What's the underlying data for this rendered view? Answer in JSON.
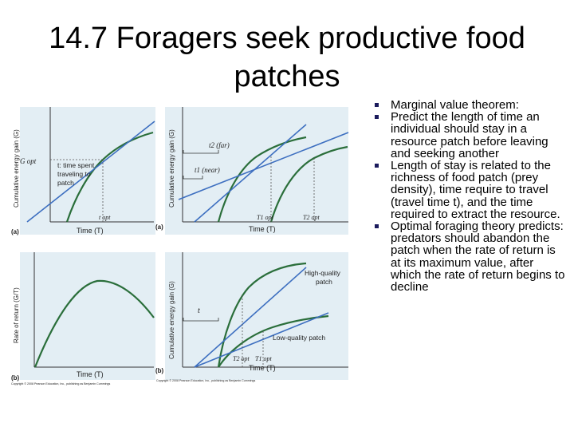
{
  "slide": {
    "title": "14.7 Foragers seek productive food patches"
  },
  "bullets": [
    "Marginal value theorem:",
    "Predict the length of time an individual should stay in a resource patch before leaving and seeking another",
    "Length of stay is related to the richness of food patch (prey density), time require to travel (travel time t), and the time required to extract the resource.",
    "Optimal foraging theory predicts: predators should abandon the patch when the rate of return is at its maximum value, after which the rate of return begins to decline"
  ],
  "figure": {
    "panel_a": {
      "letter": "(a)",
      "ylabel": "Cumulative energy gain (G)",
      "xlabel": "Time (T)",
      "g_opt": "G opt",
      "t_opt": "t opt",
      "annotation": "t: time spent traveling to patch"
    },
    "panel_b": {
      "letter": "(b)",
      "ylabel": "Rate of return (G/T)",
      "xlabel": "Time (T)"
    },
    "panel_c": {
      "letter": "(a)",
      "ylabel": "Cumulative energy gain (G)",
      "xlabel": "Time (T)",
      "far": "t2 (far)",
      "near": "t1 (near)",
      "t1opt": "T1 opt",
      "t2opt": "T2 opt"
    },
    "panel_d": {
      "letter": "(b)",
      "ylabel": "Cumulative energy gain (G)",
      "xlabel": "Time (T)",
      "high": [
        "High-quality",
        "patch"
      ],
      "low": "Low-quality patch",
      "t": "t",
      "t2opt": "T2 opt",
      "t1opt": "T1 opt"
    },
    "credit_left": "Copyright © 2008 Pearson Education, Inc., publishing as Benjamin Cummings",
    "credit_right": "Copyright © 2008 Pearson Education, Inc., publishing as Benjamin Cummings"
  },
  "colors": {
    "panel_bg": "#e3eef4",
    "curve": "#2a6e3a",
    "line": "#3d6fc0"
  }
}
